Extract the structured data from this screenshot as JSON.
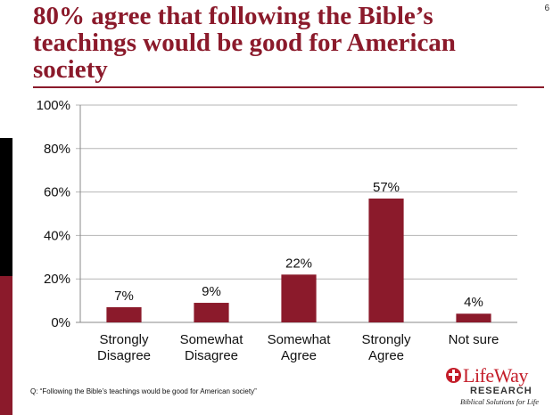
{
  "slide": {
    "title": "80% agree that following the Bible’s teachings would be good for American society",
    "page_number": "6",
    "footnote": "Q: “Following the Bible’s teachings would be good for American society”",
    "logo_name": "LifeWay",
    "logo_subtitle": "RESEARCH",
    "logo_tagline": "Biblical Solutions for Life",
    "icon": "lifeway-cross-icon"
  },
  "colors": {
    "bar": "#8b1a2b",
    "title": "#8b1a2b",
    "logo": "#c41e2a"
  },
  "chart_data": {
    "type": "bar",
    "categories": [
      [
        "Strongly",
        "Disagree"
      ],
      [
        "Somewhat",
        "Disagree"
      ],
      [
        "Somewhat",
        "Agree"
      ],
      [
        "Strongly",
        "Agree"
      ],
      [
        "Not sure"
      ]
    ],
    "values": [
      7,
      9,
      22,
      57,
      4
    ],
    "data_labels": [
      "7%",
      "9%",
      "22%",
      "57%",
      "4%"
    ],
    "yticks": [
      "0%",
      "20%",
      "40%",
      "60%",
      "80%",
      "100%"
    ],
    "ylim": [
      0,
      100
    ],
    "grid": true,
    "legend": "none",
    "title": "",
    "xlabel": "",
    "ylabel": ""
  }
}
